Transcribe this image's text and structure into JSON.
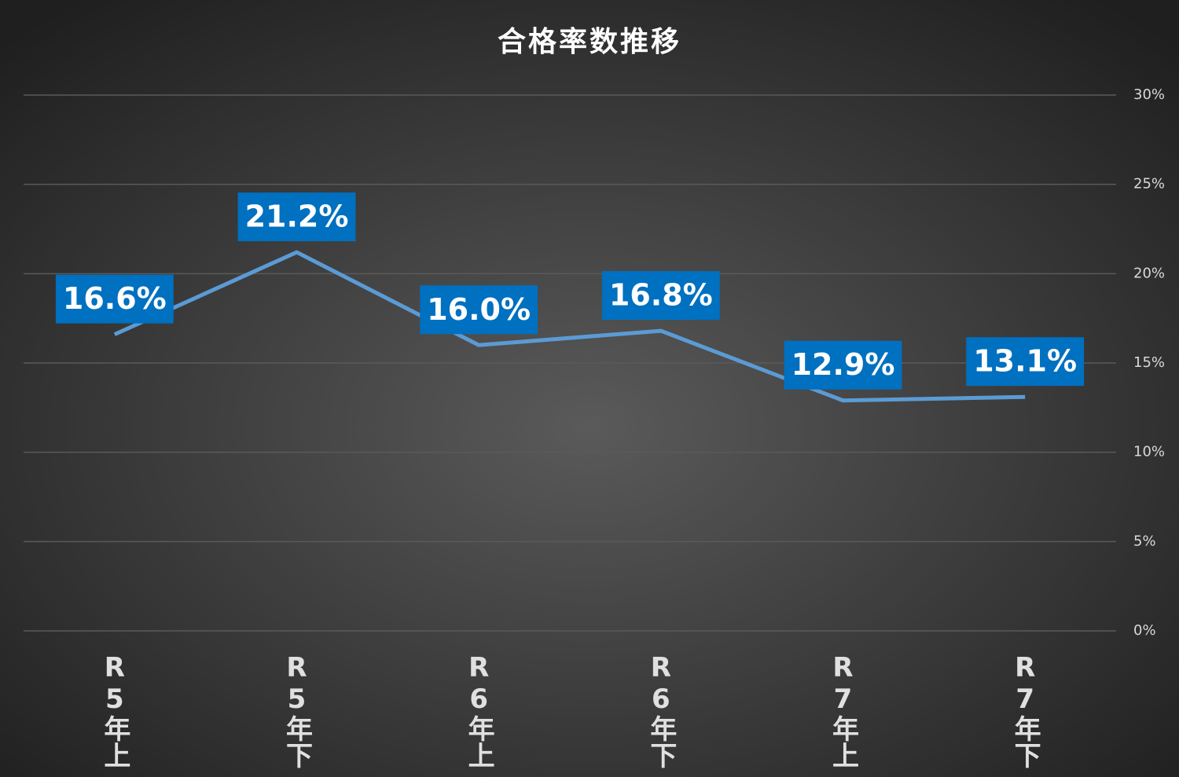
{
  "chart_data": {
    "type": "line",
    "title": "合格率数推移",
    "categories": [
      "R5年上",
      "R5年下",
      "R6年上",
      "R6年下",
      "R7年上",
      "R7年下"
    ],
    "series": [
      {
        "name": "合格率",
        "color": "#5b9bd5",
        "values": [
          16.6,
          21.2,
          16.0,
          16.8,
          12.9,
          13.1
        ],
        "value_labels": [
          "16.6%",
          "21.2%",
          "16.0%",
          "16.8%",
          "12.9%",
          "13.1%"
        ]
      }
    ],
    "ylim": [
      0,
      30
    ],
    "yticks": [
      {
        "value": 0,
        "label": "0%"
      },
      {
        "value": 5,
        "label": "5%"
      },
      {
        "value": 10,
        "label": "10%"
      },
      {
        "value": 15,
        "label": "15%"
      },
      {
        "value": 20,
        "label": "20%"
      },
      {
        "value": 25,
        "label": "25%"
      },
      {
        "value": 30,
        "label": "30%"
      }
    ],
    "y_axis_side": "right",
    "grid": true
  }
}
